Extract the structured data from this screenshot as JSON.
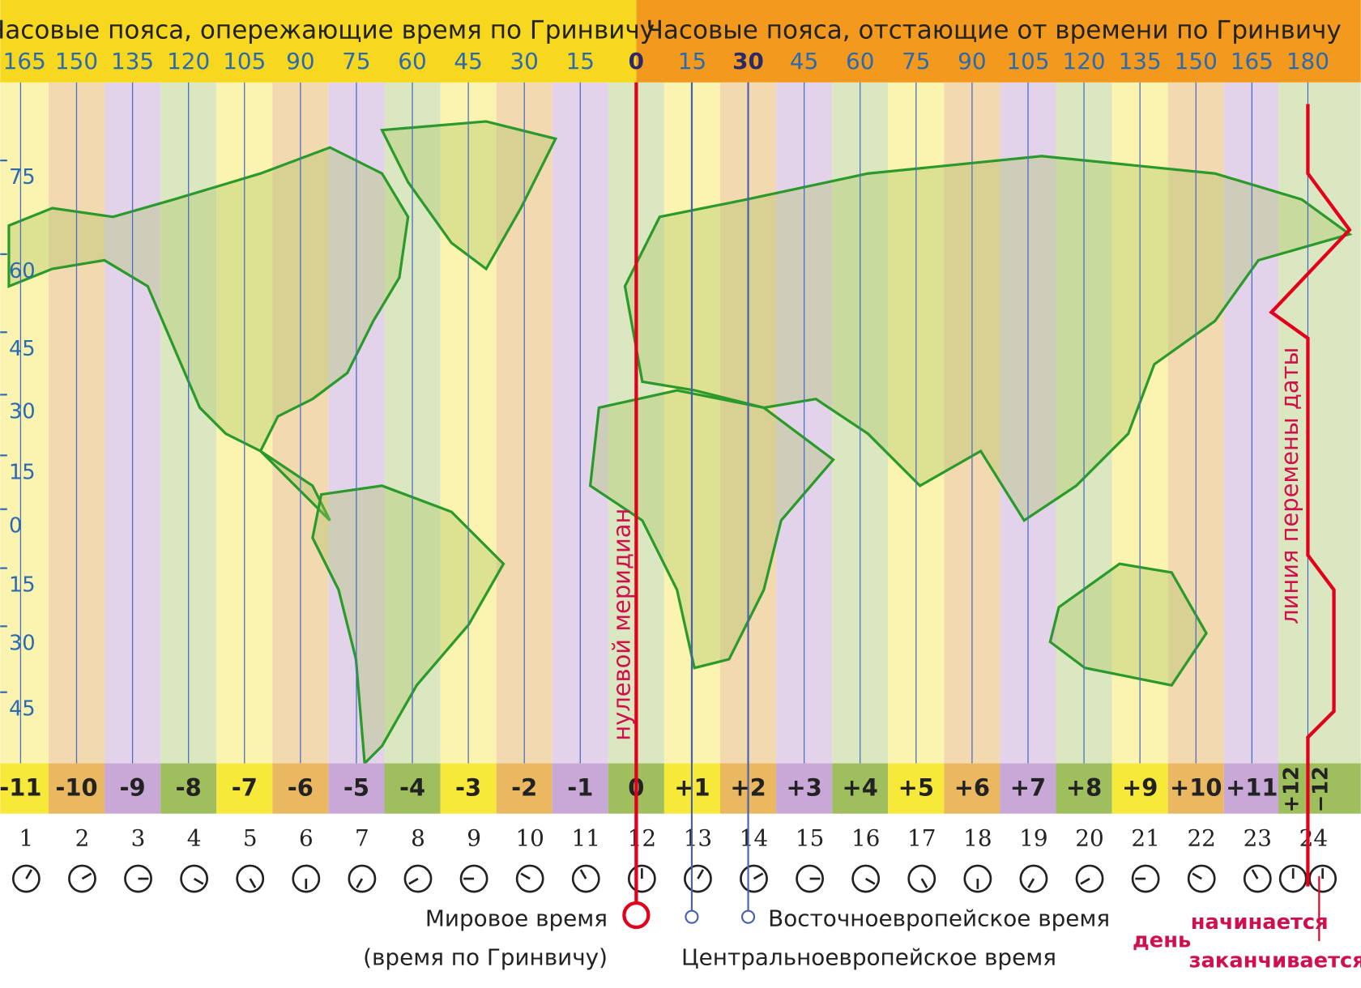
{
  "header": {
    "left_title": "Часовые пояса, опережающие время по Гринвичу",
    "right_title": "Часовые пояса, отстающие от времени по Гринвичу"
  },
  "longitudes": [
    165,
    150,
    135,
    120,
    105,
    90,
    75,
    60,
    45,
    30,
    15,
    0,
    15,
    30,
    45,
    60,
    75,
    90,
    105,
    120,
    135,
    150,
    165,
    180
  ],
  "latitudes": [
    75,
    60,
    45,
    30,
    15,
    0,
    15,
    30,
    45
  ],
  "zones": [
    "-11",
    "-10",
    "-9",
    "-8",
    "-7",
    "-6",
    "-5",
    "-4",
    "-3",
    "-2",
    "-1",
    "0",
    "+1",
    "+2",
    "+3",
    "+4",
    "+5",
    "+6",
    "+7",
    "+8",
    "+9",
    "+10",
    "+11",
    "+12",
    "−12"
  ],
  "hours": [
    1,
    2,
    3,
    4,
    5,
    6,
    7,
    8,
    9,
    10,
    11,
    12,
    13,
    14,
    15,
    16,
    17,
    18,
    19,
    20,
    21,
    22,
    23,
    24
  ],
  "labels": {
    "prime_meridian": "нулевой меридиан",
    "date_line": "линия перемены даты"
  },
  "legend": {
    "world_time": "Мировое время",
    "greenwich": "(время по Гринвичу)",
    "eastern_europe": "Восточноевропейское время",
    "central_europe": "Центральноевропейское время",
    "day": "день",
    "begins": "начинается",
    "ends": "заканчивается"
  }
}
